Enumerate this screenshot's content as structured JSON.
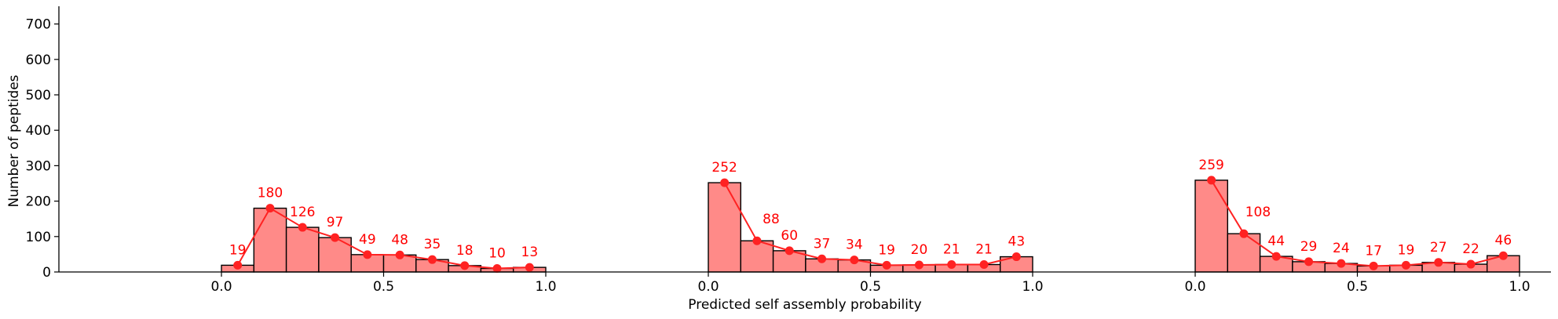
{
  "chart_data": {
    "type": "bar",
    "xlabel": "Predicted self assembly probability",
    "ylabel": "Number of peptides",
    "ylim": [
      0,
      750
    ],
    "yticks": [
      0,
      100,
      200,
      300,
      400,
      500,
      600,
      700
    ],
    "xticks": [
      "0.0",
      "0.5",
      "1.0"
    ],
    "bin_range": [
      0,
      1
    ],
    "grid": false,
    "colors": {
      "bar_fill": "#ff8a88",
      "bar_edge": "#000000",
      "line": "#ff2222",
      "label": "#ff0000"
    },
    "panels": [
      {
        "bins": [
          "0.0-0.1",
          "0.1-0.2",
          "0.2-0.3",
          "0.3-0.4",
          "0.4-0.5",
          "0.5-0.6",
          "0.6-0.7",
          "0.7-0.8",
          "0.8-0.9",
          "0.9-1.0"
        ],
        "values": [
          19,
          180,
          126,
          97,
          49,
          48,
          35,
          18,
          10,
          13
        ]
      },
      {
        "bins": [
          "0.0-0.1",
          "0.1-0.2",
          "0.2-0.3",
          "0.3-0.4",
          "0.4-0.5",
          "0.5-0.6",
          "0.6-0.7",
          "0.7-0.8",
          "0.8-0.9",
          "0.9-1.0"
        ],
        "values": [
          252,
          88,
          60,
          37,
          34,
          19,
          20,
          21,
          21,
          43
        ]
      },
      {
        "bins": [
          "0.0-0.1",
          "0.1-0.2",
          "0.2-0.3",
          "0.3-0.4",
          "0.4-0.5",
          "0.5-0.6",
          "0.6-0.7",
          "0.7-0.8",
          "0.8-0.9",
          "0.9-1.0"
        ],
        "values": [
          259,
          108,
          44,
          29,
          24,
          17,
          19,
          27,
          22,
          46
        ]
      }
    ]
  }
}
